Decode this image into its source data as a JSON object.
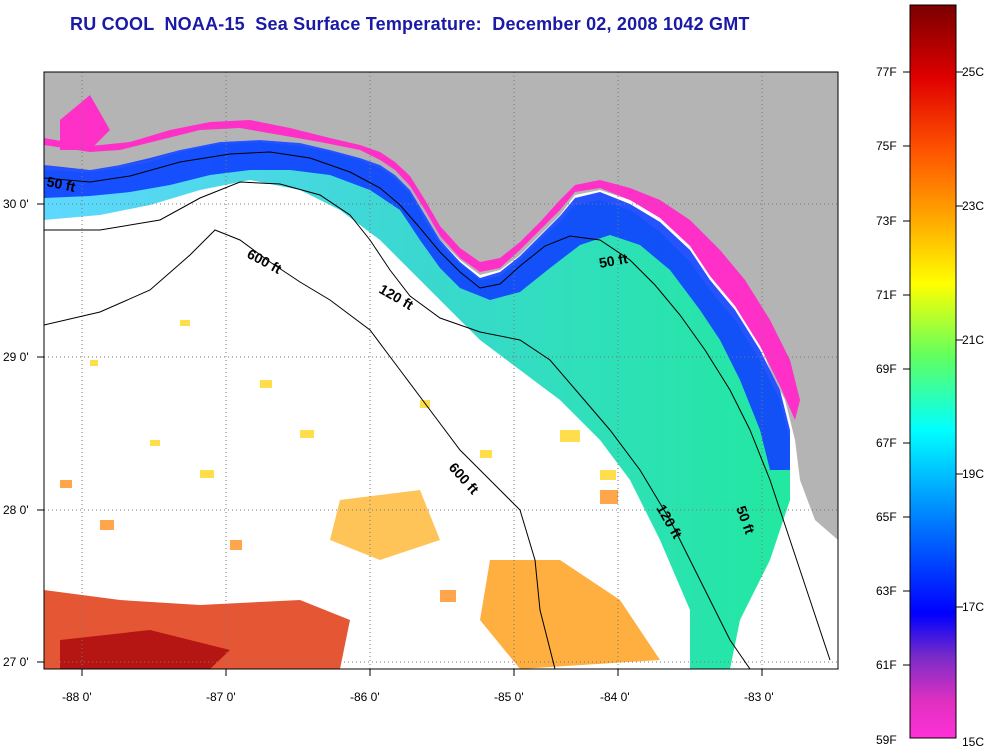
{
  "title": "RU COOL  NOAA-15  Sea Surface Temperature:  December 02, 2008 1042 GMT",
  "map": {
    "lon_labels": [
      "-88 0'",
      "-87 0'",
      "-86 0'",
      "-85 0'",
      "-84 0'",
      "-83 0'"
    ],
    "lat_labels": [
      "30 0'",
      "29 0'",
      "28 0'",
      "27 0'"
    ],
    "contours": [
      "50 ft",
      "600 ft",
      "120 ft",
      "50 ft",
      "600 ft",
      "120 ft",
      "50 ft"
    ]
  },
  "colorbar": {
    "fahrenheit": [
      "77F",
      "75F",
      "73F",
      "71F",
      "69F",
      "67F",
      "65F",
      "63F",
      "61F",
      "59F"
    ],
    "celsius": [
      "25C",
      "23C",
      "21C",
      "19C",
      "17C",
      "15C"
    ]
  },
  "colors": {
    "land": "#b4b4b4",
    "title": "#1a1aa6"
  }
}
